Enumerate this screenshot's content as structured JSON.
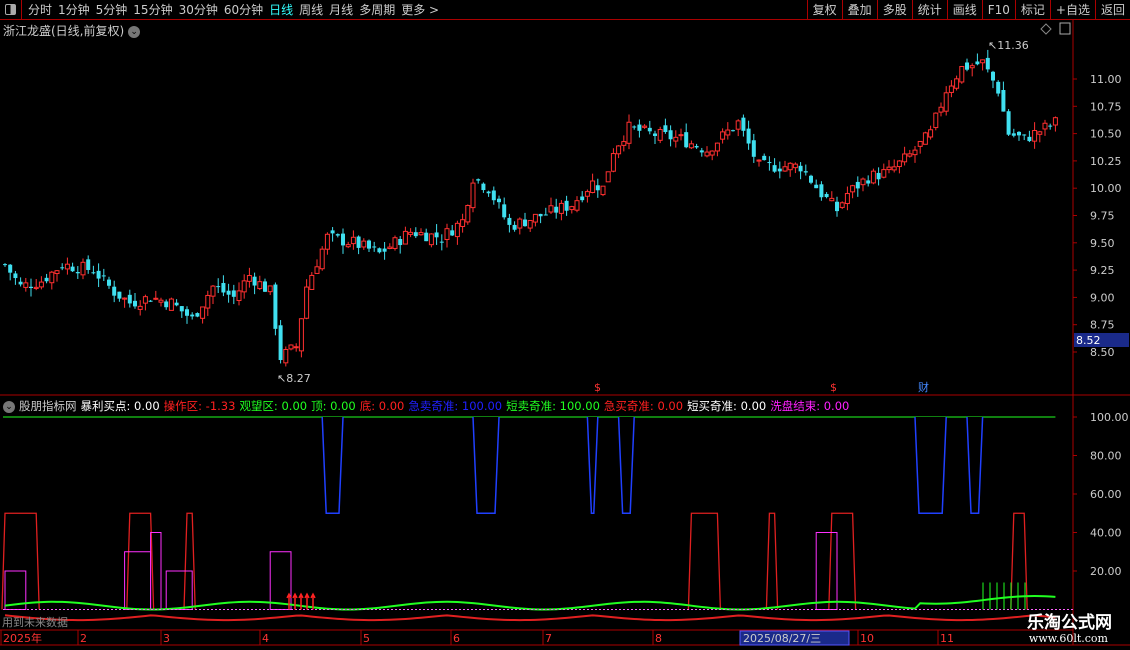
{
  "topbar": {
    "periods": [
      "分时",
      "1分钟",
      "5分钟",
      "15分钟",
      "30分钟",
      "60分钟",
      "日线",
      "周线",
      "月线",
      "多周期",
      "更多 >"
    ],
    "active": "日线",
    "buttons": [
      "复权",
      "叠加",
      "多股",
      "统计",
      "画线",
      "F10",
      "标记",
      "+自选",
      "返回"
    ]
  },
  "title": "浙江龙盛(日线,前复权)",
  "price_axis": [
    "11.00",
    "10.75",
    "10.50",
    "10.25",
    "10.00",
    "9.75",
    "9.50",
    "9.25",
    "9.00",
    "8.75",
    "8.50"
  ],
  "current_price": "8.52",
  "annotations": {
    "high": "11.36",
    "low": "8.27",
    "markers": [
      "$",
      "$",
      "财"
    ]
  },
  "indicator": {
    "name": "股朋指标网",
    "items": [
      {
        "label": "暴利买点: 0.00",
        "color": "#ffffff"
      },
      {
        "label": "操作区: -1.33",
        "color": "#ff2020"
      },
      {
        "label": "观望区: 0.00",
        "color": "#20ff20"
      },
      {
        "label": "顶: 0.00",
        "color": "#20ff20"
      },
      {
        "label": "底: 0.00",
        "color": "#ff2020"
      },
      {
        "label": "急卖奇准: 100.00",
        "color": "#2020ff"
      },
      {
        "label": "短卖奇准: 100.00",
        "color": "#20ff20"
      },
      {
        "label": "急买奇准: 0.00",
        "color": "#ff2020"
      },
      {
        "label": "短买奇准: 0.00",
        "color": "#ffffff"
      },
      {
        "label": "洗盘结束: 0.00",
        "color": "#ff20ff"
      }
    ],
    "axis": [
      "100.00",
      "80.00",
      "60.00",
      "40.00",
      "20.00"
    ]
  },
  "future_note": "用到未来数据",
  "time_axis": {
    "labels": [
      "2025年",
      "2",
      "3",
      "4",
      "5",
      "6",
      "7",
      "8",
      "10",
      "11"
    ],
    "cursor_date": "2025/08/27/三"
  },
  "watermark": {
    "name": "乐淘公式网",
    "url": "www.60lt.com"
  },
  "chart_data": {
    "type": "candlestick",
    "ylim": [
      8.2,
      11.5
    ],
    "close_waypoints": [
      [
        0,
        9.3
      ],
      [
        3,
        9.1
      ],
      [
        7,
        9.15
      ],
      [
        11,
        9.3
      ],
      [
        17,
        9.25
      ],
      [
        21,
        9.05
      ],
      [
        24,
        8.95
      ],
      [
        28,
        9.0
      ],
      [
        32,
        8.95
      ],
      [
        36,
        8.8
      ],
      [
        40,
        9.1
      ],
      [
        44,
        9.0
      ],
      [
        47,
        9.2
      ],
      [
        51,
        9.05
      ],
      [
        53,
        8.45
      ],
      [
        56,
        8.55
      ],
      [
        58,
        9.1
      ],
      [
        62,
        9.55
      ],
      [
        67,
        9.5
      ],
      [
        72,
        9.4
      ],
      [
        78,
        9.6
      ],
      [
        84,
        9.55
      ],
      [
        88,
        9.7
      ],
      [
        90,
        10.1
      ],
      [
        93,
        10.0
      ],
      [
        97,
        9.65
      ],
      [
        103,
        9.75
      ],
      [
        109,
        9.85
      ],
      [
        113,
        10.05
      ],
      [
        115,
        10.0
      ],
      [
        117,
        10.35
      ],
      [
        120,
        10.55
      ],
      [
        124,
        10.5
      ],
      [
        130,
        10.45
      ],
      [
        135,
        10.35
      ],
      [
        141,
        10.6
      ],
      [
        145,
        10.2
      ],
      [
        149,
        10.2
      ],
      [
        153,
        10.2
      ],
      [
        157,
        9.95
      ],
      [
        160,
        9.8
      ],
      [
        162,
        9.95
      ],
      [
        166,
        10.1
      ],
      [
        170,
        10.15
      ],
      [
        174,
        10.3
      ],
      [
        178,
        10.5
      ],
      [
        181,
        10.9
      ],
      [
        184,
        11.1
      ],
      [
        188,
        11.15
      ],
      [
        191,
        10.9
      ],
      [
        193,
        10.5
      ],
      [
        196,
        10.45
      ],
      [
        202,
        10.6
      ]
    ],
    "high": 11.36,
    "low": 8.27,
    "indicator_signals": {
      "sell_blue": [
        [
          61,
          65
        ],
        [
          90,
          95
        ],
        [
          112,
          114
        ],
        [
          118,
          121
        ],
        [
          175,
          181
        ],
        [
          185,
          188
        ]
      ],
      "red_peaks": [
        [
          0,
          6
        ],
        [
          24,
          28
        ],
        [
          35,
          36
        ],
        [
          132,
          137
        ],
        [
          147,
          148
        ],
        [
          159,
          163
        ],
        [
          194,
          196
        ]
      ],
      "wash_boxes": [
        [
          0,
          4
        ],
        [
          23,
          28
        ],
        [
          28,
          30
        ],
        [
          31,
          36
        ],
        [
          51,
          55
        ],
        [
          156,
          160
        ]
      ]
    }
  }
}
